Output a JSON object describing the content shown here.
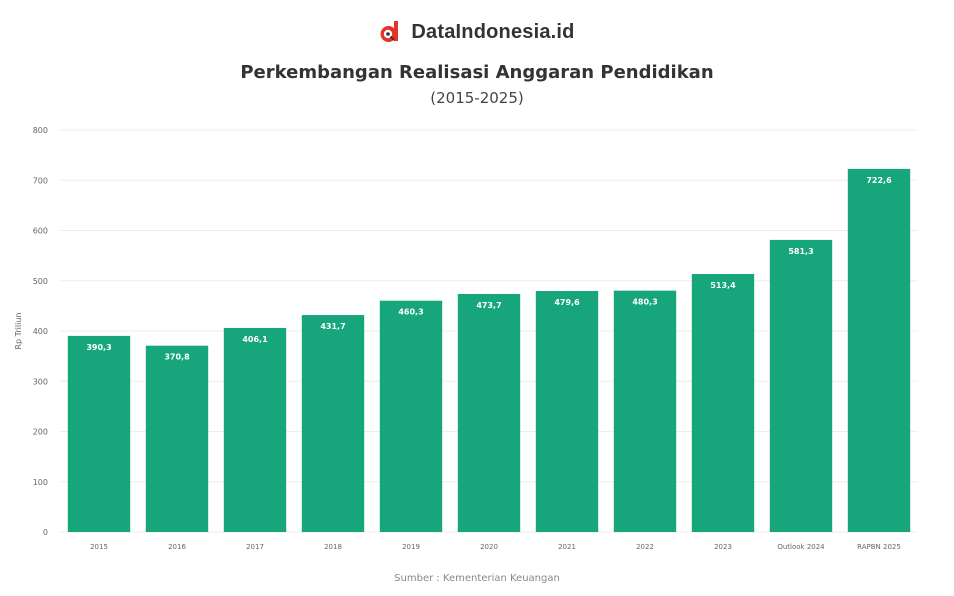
{
  "brand": {
    "name": "DataIndonesia.id",
    "logo_color": "#e5332a"
  },
  "accent_color": "#17a57b",
  "chart_data": {
    "type": "bar",
    "title": "Perkembangan Realisasi Anggaran Pendidikan",
    "subtitle": "(2015-2025)",
    "ylabel": "Rp Triliun",
    "xlabel": "",
    "categories": [
      "2015",
      "2016",
      "2017",
      "2018",
      "2019",
      "2020",
      "2021",
      "2022",
      "2023",
      "Outlook 2024",
      "RAPBN 2025"
    ],
    "values": [
      390.3,
      370.8,
      406.1,
      431.7,
      460.3,
      473.7,
      479.6,
      480.3,
      513.4,
      581.3,
      722.6
    ],
    "value_labels": [
      "390,3",
      "370,8",
      "406,1",
      "431,7",
      "460,3",
      "473,7",
      "479,6",
      "480,3",
      "513,4",
      "581,3",
      "722,6"
    ],
    "ylim": [
      0,
      800
    ],
    "yticks": [
      0,
      100,
      200,
      300,
      400,
      500,
      600,
      700,
      800
    ],
    "grid": true,
    "bar_color": "#17a57b",
    "source": "Sumber : Kementerian Keuangan"
  }
}
